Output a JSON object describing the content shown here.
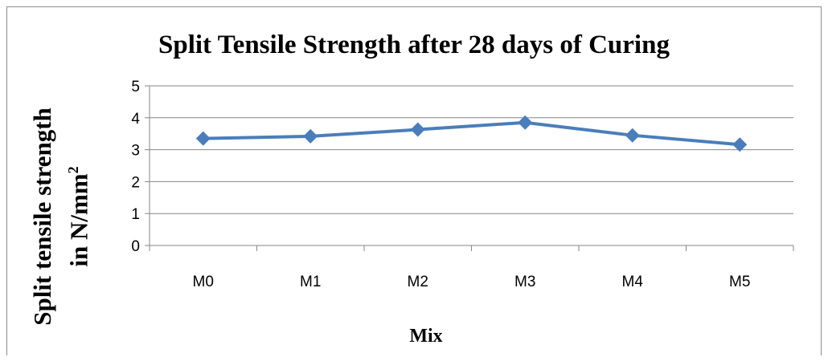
{
  "chart_data": {
    "type": "line",
    "title": "Split Tensile Strength after 28 days of Curing",
    "ylabel_line1": "Split tensile strength",
    "ylabel_line2": "in N/mm",
    "ylabel_sup": "2",
    "xlabel": "Mix",
    "categories": [
      "M0",
      "M1",
      "M2",
      "M3",
      "M4",
      "M5"
    ],
    "series": [
      {
        "values": [
          3.35,
          3.42,
          3.63,
          3.85,
          3.45,
          3.16
        ],
        "color": "#4a7ebb"
      }
    ],
    "ylim": [
      0,
      5
    ],
    "yticks": [
      0,
      1,
      2,
      3,
      4,
      5
    ],
    "grid": true,
    "gridColor": "#868686",
    "axisColor": "#868686",
    "marker": "diamond"
  }
}
